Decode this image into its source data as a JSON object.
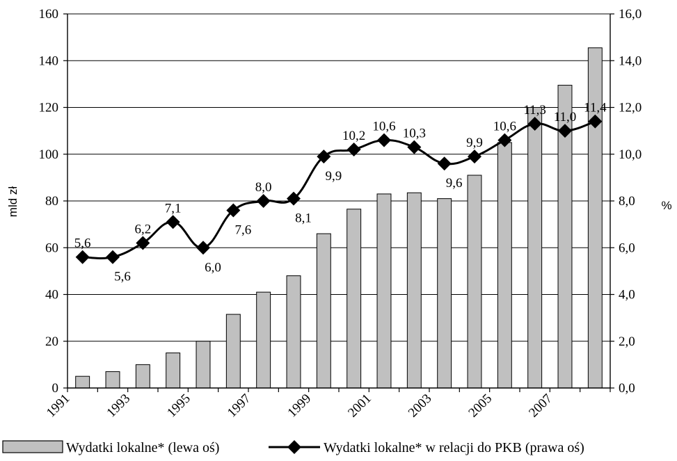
{
  "chart_data": {
    "type": "bar",
    "title": "",
    "ylabel": "mld zł",
    "y2label": "%",
    "ylim": [
      0,
      160
    ],
    "y2lim": [
      0,
      16
    ],
    "yticks": [
      "0",
      "20",
      "40",
      "60",
      "80",
      "100",
      "120",
      "140",
      "160"
    ],
    "y2ticks": [
      "0,0",
      "2,0",
      "4,0",
      "6,0",
      "8,0",
      "10,0",
      "12,0",
      "14,0",
      "16,0"
    ],
    "xtick_labels": [
      "1991",
      "1993",
      "1995",
      "1997",
      "1999",
      "2001",
      "2003",
      "2005",
      "2007"
    ],
    "categories": [
      "1991",
      "1992",
      "1993",
      "1994",
      "1995",
      "1996",
      "1997",
      "1998",
      "1999",
      "2000",
      "2001",
      "2002",
      "2003",
      "2004",
      "2005",
      "2006",
      "2007",
      "2008"
    ],
    "grid": true,
    "legend_position": "bottom",
    "series": [
      {
        "name": "Wydatki lokalne* (lewa oś)",
        "type": "bar",
        "axis": "left",
        "color": "#c0c0c0",
        "values": [
          5,
          7,
          10,
          15,
          20,
          31.5,
          41,
          48,
          66,
          76.5,
          83,
          83.5,
          81,
          91,
          105,
          120,
          129.5,
          145.5
        ]
      },
      {
        "name": "Wydatki lokalne* w relacji do PKB (prawa oś)",
        "type": "line",
        "axis": "right",
        "color": "#000000",
        "values": [
          5.6,
          5.6,
          6.2,
          7.1,
          6.0,
          7.6,
          8.0,
          8.1,
          9.9,
          10.2,
          10.6,
          10.3,
          9.6,
          9.9,
          10.6,
          11.3,
          11.0,
          11.4
        ],
        "labels": [
          "5,6",
          "5,6",
          "6,2",
          "7,1",
          "6,0",
          "7,6",
          "8,0",
          "8,1",
          "9,9",
          "10,2",
          "10,6",
          "10,3",
          "9,6",
          "9,9",
          "10,6",
          "11,3",
          "11,0",
          "11,4"
        ]
      }
    ]
  }
}
